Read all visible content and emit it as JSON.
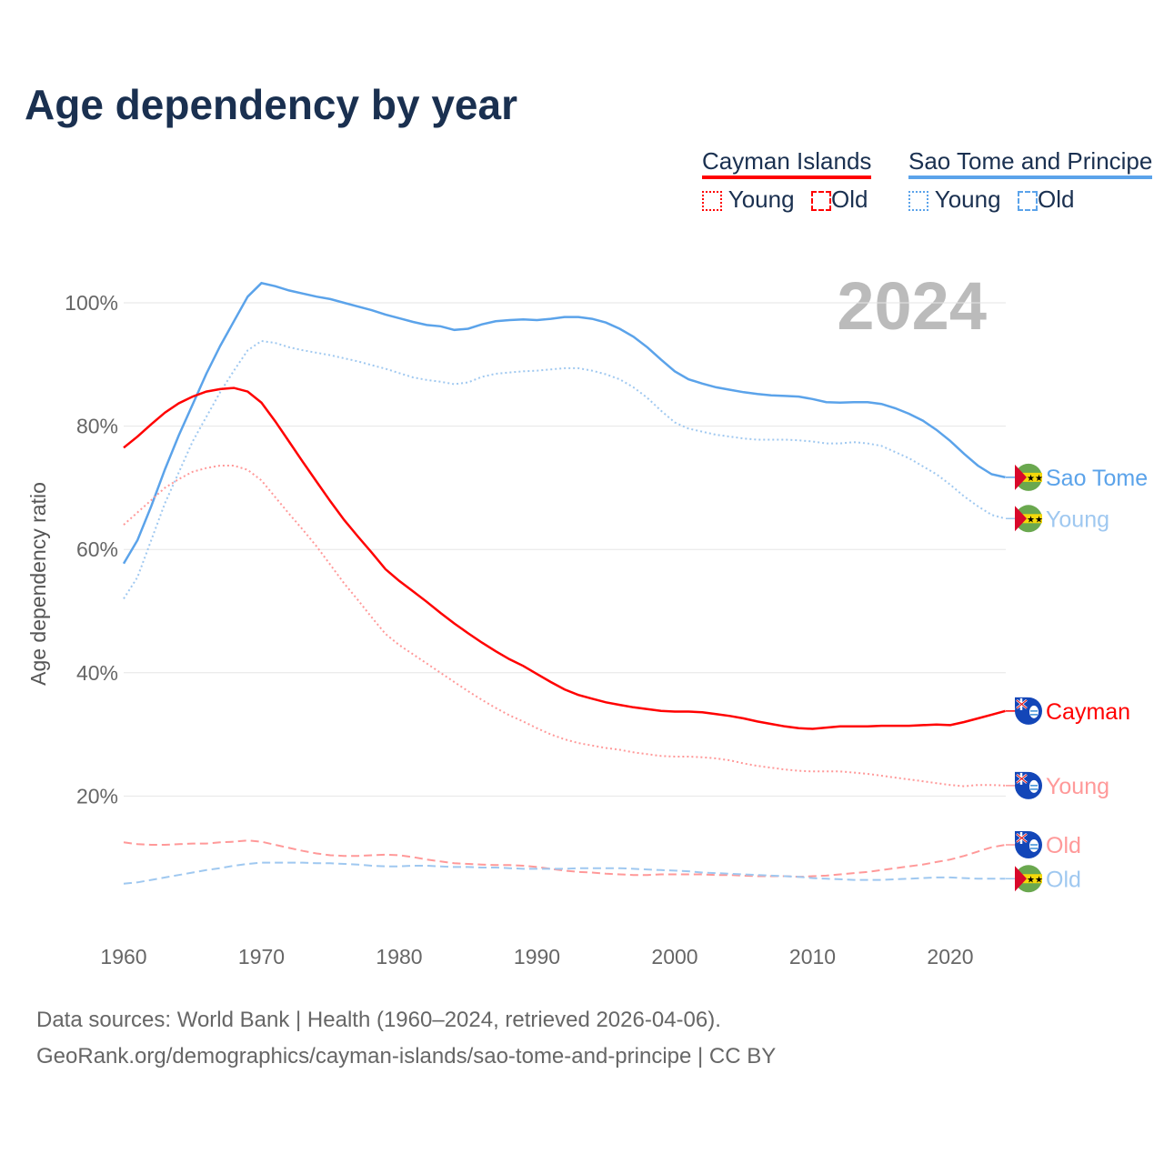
{
  "title": "Age dependency by year",
  "legend": {
    "groups": [
      {
        "name": "Cayman Islands",
        "color": "#ff0000",
        "items": [
          "Young",
          "Old"
        ]
      },
      {
        "name": "Sao Tome and Principe",
        "color": "#5ba3ea",
        "items": [
          "Young",
          "Old"
        ]
      }
    ]
  },
  "footer": {
    "line1": "Data sources: World Bank | Health (1960–2024, retrieved 2026-04-06).",
    "line2": "GeoRank.org/demographics/cayman-islands/sao-tome-and-principe | CC BY"
  },
  "chart_data": {
    "type": "line",
    "title": "Age dependency by year",
    "year_watermark": "2024",
    "xlabel": "",
    "ylabel": "Age dependency ratio",
    "xlim": [
      1960,
      2024
    ],
    "ylim": [
      0,
      105
    ],
    "xticks": [
      "1960",
      "1970",
      "1980",
      "1990",
      "2000",
      "2010",
      "2020"
    ],
    "yticks": [
      "20%",
      "40%",
      "60%",
      "80%",
      "100%"
    ],
    "grid": true,
    "x_start": 1960,
    "series": [
      {
        "name": "Sao Tome",
        "country": "Sao Tome and Principe",
        "kind": "total",
        "color": "#5ba3ea",
        "dash": "",
        "values": [
          57.7,
          61.5,
          67,
          73,
          78.5,
          83.5,
          88.5,
          93,
          97,
          101,
          103.2,
          102.7,
          102,
          101.5,
          101,
          100.6,
          100,
          99.4,
          98.8,
          98.1,
          97.5,
          96.9,
          96.4,
          96.2,
          95.6,
          95.8,
          96.5,
          97,
          97.2,
          97.3,
          97.2,
          97.4,
          97.7,
          97.7,
          97.4,
          96.8,
          95.8,
          94.5,
          92.8,
          90.8,
          88.9,
          87.6,
          86.9,
          86.3,
          85.9,
          85.5,
          85.2,
          85,
          84.9,
          84.8,
          84.4,
          83.9,
          83.8,
          83.9,
          83.9,
          83.6,
          82.9,
          82,
          80.9,
          79.4,
          77.6,
          75.5,
          73.6,
          72.2,
          71.7
        ]
      },
      {
        "name": "Young",
        "country": "Sao Tome and Principe",
        "kind": "young",
        "color": "#9fc8f0",
        "dash": "2,3",
        "values": [
          52,
          55.5,
          61.5,
          67.5,
          72.5,
          77.5,
          81.5,
          85.5,
          89,
          92.3,
          93.8,
          93.5,
          92.8,
          92.3,
          91.9,
          91.5,
          91,
          90.5,
          89.9,
          89.3,
          88.6,
          87.9,
          87.5,
          87.2,
          86.8,
          87.1,
          88,
          88.5,
          88.7,
          88.9,
          89,
          89.2,
          89.4,
          89.4,
          89,
          88.4,
          87.6,
          86.3,
          84.6,
          82.5,
          80.6,
          79.6,
          79.1,
          78.6,
          78.3,
          78,
          77.8,
          77.8,
          77.8,
          77.7,
          77.5,
          77.2,
          77.2,
          77.4,
          77.2,
          76.8,
          75.8,
          74.8,
          73.5,
          72.2,
          70.5,
          68.6,
          67,
          65.6,
          65
        ]
      },
      {
        "name": "Cayman",
        "country": "Cayman Islands",
        "kind": "total",
        "color": "#ff0000",
        "dash": "",
        "values": [
          76.5,
          78.3,
          80.3,
          82.2,
          83.7,
          84.8,
          85.6,
          86,
          86.2,
          85.6,
          83.8,
          80.8,
          77.5,
          74.2,
          71,
          67.8,
          64.8,
          62.1,
          59.5,
          56.8,
          54.9,
          53.2,
          51.5,
          49.7,
          48,
          46.4,
          44.9,
          43.5,
          42.2,
          41.1,
          39.8,
          38.5,
          37.3,
          36.4,
          35.8,
          35.2,
          34.8,
          34.4,
          34.1,
          33.8,
          33.7,
          33.7,
          33.6,
          33.3,
          33,
          32.6,
          32.1,
          31.7,
          31.3,
          31,
          30.9,
          31.1,
          31.3,
          31.3,
          31.3,
          31.4,
          31.4,
          31.4,
          31.5,
          31.6,
          31.5,
          32,
          32.6,
          33.2,
          33.8
        ]
      },
      {
        "name": "Young",
        "country": "Cayman Islands",
        "kind": "young",
        "color": "#ff9999",
        "dash": "2,3",
        "values": [
          64,
          66,
          68,
          70,
          71.4,
          72.6,
          73.2,
          73.6,
          73.6,
          72.9,
          71.2,
          68.5,
          65.8,
          63.2,
          60.5,
          57.5,
          54.5,
          51.8,
          49,
          46.3,
          44.5,
          43,
          41.5,
          40,
          38.5,
          37,
          35.6,
          34.3,
          33.1,
          32.1,
          31,
          30,
          29.2,
          28.6,
          28.2,
          27.8,
          27.5,
          27.1,
          26.8,
          26.5,
          26.4,
          26.4,
          26.3,
          26.1,
          25.8,
          25.3,
          24.9,
          24.6,
          24.3,
          24.1,
          24,
          24,
          24,
          23.8,
          23.6,
          23.3,
          23,
          22.7,
          22.4,
          22.1,
          21.8,
          21.6,
          21.8,
          21.8,
          21.7
        ]
      },
      {
        "name": "Old",
        "country": "Cayman Islands",
        "kind": "old",
        "color": "#ff9999",
        "dash": "9,5",
        "values": [
          12.5,
          12.2,
          12.1,
          12.1,
          12.2,
          12.3,
          12.3,
          12.5,
          12.6,
          12.8,
          12.6,
          12.1,
          11.6,
          11.1,
          10.7,
          10.4,
          10.3,
          10.3,
          10.4,
          10.5,
          10.4,
          10.1,
          9.7,
          9.4,
          9.1,
          9,
          8.9,
          8.8,
          8.8,
          8.7,
          8.5,
          8.2,
          7.9,
          7.7,
          7.6,
          7.4,
          7.3,
          7.2,
          7.2,
          7.3,
          7.3,
          7.3,
          7.3,
          7.2,
          7.2,
          7.1,
          7,
          7,
          7,
          6.9,
          7,
          7.1,
          7.3,
          7.5,
          7.7,
          8,
          8.3,
          8.6,
          8.9,
          9.3,
          9.7,
          10.3,
          11,
          11.7,
          12.1
        ]
      },
      {
        "name": "Old",
        "country": "Sao Tome and Principe",
        "kind": "old",
        "color": "#9fc8f0",
        "dash": "9,5",
        "values": [
          5.8,
          6,
          6.4,
          6.8,
          7.2,
          7.6,
          8,
          8.3,
          8.7,
          9,
          9.2,
          9.2,
          9.2,
          9.2,
          9.1,
          9.1,
          9,
          8.9,
          8.7,
          8.6,
          8.6,
          8.7,
          8.7,
          8.6,
          8.5,
          8.5,
          8.4,
          8.4,
          8.3,
          8.2,
          8.2,
          8.2,
          8.2,
          8.3,
          8.3,
          8.3,
          8.3,
          8.2,
          8.1,
          8,
          7.9,
          7.8,
          7.6,
          7.5,
          7.4,
          7.3,
          7.2,
          7.1,
          7,
          6.9,
          6.7,
          6.6,
          6.5,
          6.4,
          6.4,
          6.4,
          6.5,
          6.6,
          6.7,
          6.8,
          6.8,
          6.7,
          6.6,
          6.6,
          6.6
        ]
      }
    ]
  }
}
